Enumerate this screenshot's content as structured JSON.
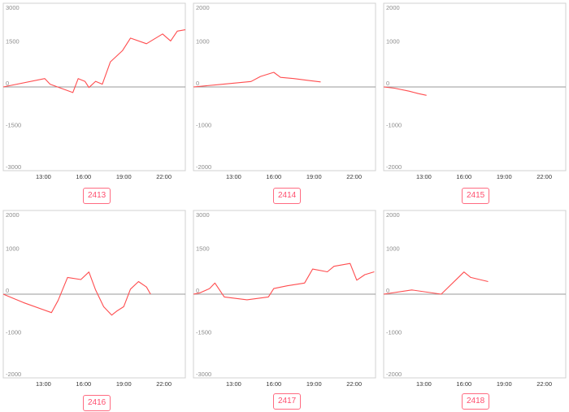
{
  "chart_data": [
    {
      "type": "line",
      "label": "2413",
      "yticks": [
        3000,
        1500,
        0,
        -1500,
        -3000
      ],
      "ylim": [
        -3000,
        3000
      ],
      "xticks": [
        "13:00",
        "16:00",
        "19:00",
        "22:00"
      ],
      "xlim": [
        10.0,
        23.6
      ],
      "x": [
        10.0,
        13.1,
        13.5,
        15.2,
        15.6,
        16.1,
        16.4,
        16.9,
        17.4,
        18.0,
        18.9,
        19.5,
        20.7,
        21.9,
        22.5,
        23.0,
        23.6
      ],
      "values": [
        0,
        300,
        100,
        -200,
        300,
        200,
        -20,
        200,
        100,
        900,
        1300,
        1750,
        1550,
        1900,
        1650,
        2000,
        2050
      ],
      "color": "#ff4d4f"
    },
    {
      "type": "line",
      "label": "2414",
      "yticks": [
        2000,
        1000,
        0,
        -1000,
        -2000
      ],
      "ylim": [
        -2000,
        2000
      ],
      "xticks": [
        "13:00",
        "16:00",
        "19:00",
        "22:00"
      ],
      "xlim": [
        10.0,
        23.6
      ],
      "x": [
        10.0,
        12.0,
        14.3,
        15.0,
        16.0,
        16.5,
        17.5,
        18.5,
        19.5
      ],
      "values": [
        0,
        60,
        130,
        250,
        350,
        230,
        200,
        160,
        120
      ],
      "color": "#ff4d4f"
    },
    {
      "type": "line",
      "label": "2415",
      "yticks": [
        2000,
        1000,
        0,
        -1000,
        -2000
      ],
      "ylim": [
        -2000,
        2000
      ],
      "xticks": [
        "13:00",
        "16:00",
        "19:00",
        "22:00"
      ],
      "xlim": [
        10.0,
        23.6
      ],
      "x": [
        10.0,
        10.8,
        11.9,
        12.6,
        13.2
      ],
      "values": [
        0,
        -30,
        -100,
        -160,
        -200
      ],
      "color": "#ff4d4f"
    },
    {
      "type": "line",
      "label": "2416",
      "yticks": [
        2000,
        1000,
        0,
        -1000,
        -2000
      ],
      "ylim": [
        -2000,
        2000
      ],
      "xticks": [
        "13:00",
        "16:00",
        "19:00",
        "22:00"
      ],
      "xlim": [
        10.0,
        23.6
      ],
      "x": [
        10.0,
        11.5,
        13.6,
        14.1,
        14.8,
        15.8,
        16.4,
        16.9,
        17.5,
        18.1,
        18.5,
        19.0,
        19.5,
        20.1,
        20.7,
        21.0
      ],
      "values": [
        0,
        -200,
        -440,
        -150,
        400,
        350,
        530,
        100,
        -300,
        -500,
        -400,
        -300,
        120,
        300,
        170,
        0
      ],
      "color": "#ff4d4f"
    },
    {
      "type": "line",
      "label": "2417",
      "yticks": [
        3000,
        1500,
        0,
        -1500,
        -3000
      ],
      "ylim": [
        -3000,
        3000
      ],
      "xticks": [
        "13:00",
        "16:00",
        "19:00",
        "22:00"
      ],
      "xlim": [
        10.0,
        23.6
      ],
      "x": [
        10.0,
        10.5,
        11.2,
        11.6,
        12.3,
        14.0,
        15.6,
        16.0,
        17.0,
        18.3,
        18.9,
        20.0,
        20.5,
        21.7,
        22.2,
        22.8,
        23.5
      ],
      "values": [
        0,
        50,
        200,
        400,
        -100,
        -200,
        -100,
        200,
        300,
        400,
        900,
        800,
        1000,
        1100,
        500,
        700,
        800
      ],
      "color": "#ff4d4f"
    },
    {
      "type": "line",
      "label": "2418",
      "yticks": [
        2000,
        1000,
        0,
        -1000,
        -2000
      ],
      "ylim": [
        -2000,
        2000
      ],
      "xticks": [
        "13:00",
        "16:00",
        "19:00",
        "22:00"
      ],
      "xlim": [
        10.0,
        23.6
      ],
      "x": [
        10.0,
        12.1,
        14.3,
        16.0,
        16.5,
        17.8
      ],
      "values": [
        0,
        100,
        0,
        530,
        400,
        300
      ],
      "color": "#ff4d4f"
    }
  ]
}
